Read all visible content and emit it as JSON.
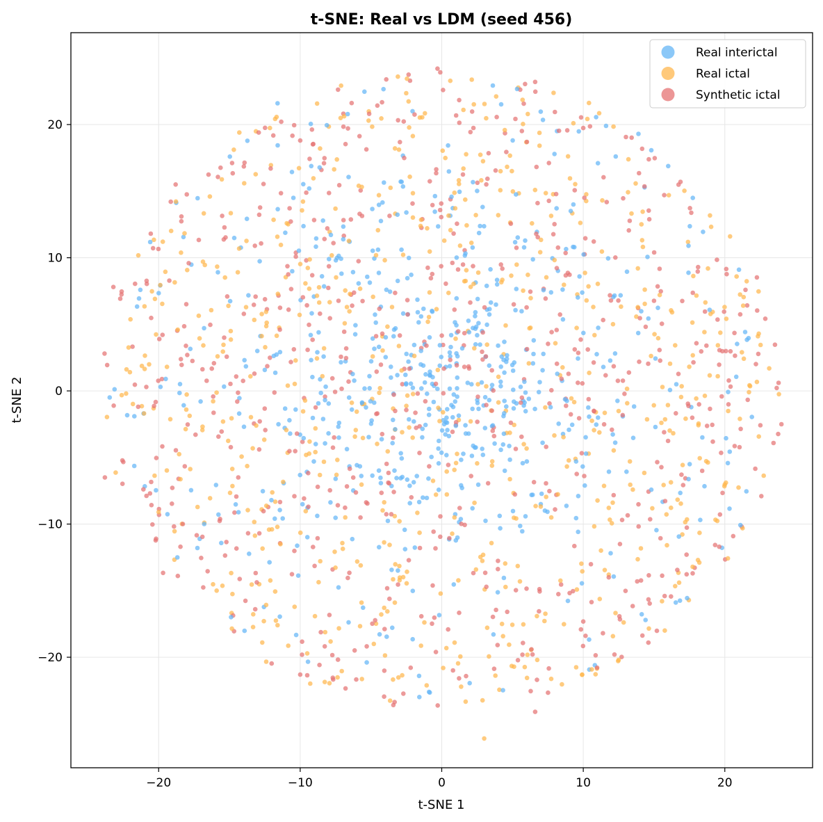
{
  "chart_data": {
    "type": "scatter",
    "title": "t-SNE: Real vs LDM (seed 456)",
    "xlabel": "t-SNE 1",
    "ylabel": "t-SNE 2",
    "xlim": [
      -26.2,
      26.2
    ],
    "ylim": [
      -28.3,
      26.9
    ],
    "xticks": [
      -20,
      -10,
      0,
      10,
      20
    ],
    "yticks": [
      -20,
      -10,
      0,
      10,
      20
    ],
    "xtick_labels": [
      "−20",
      "−10",
      "0",
      "10",
      "20"
    ],
    "ytick_labels": [
      "−20",
      "−10",
      "0",
      "10",
      "20"
    ],
    "grid": true,
    "legend_position": "top-right",
    "point_distribution": "roughly circular cloud centred at (0, 0), radius about 24; real interictal points concentrated near the centre, real ictal and synthetic ictal spread across the whole cloud",
    "series": [
      {
        "name": "Real interictal",
        "color": "#64b5f6",
        "sample_points": [
          [
            0.6,
            2.6
          ],
          [
            -1.3,
            1.9
          ],
          [
            2.1,
            0.5
          ],
          [
            -3.4,
            4.1
          ],
          [
            1.7,
            -3.2
          ],
          [
            4.6,
            2.4
          ],
          [
            -0.9,
            -1.8
          ],
          [
            3.2,
            6.1
          ],
          [
            -5.1,
            0.2
          ],
          [
            5.8,
            -1.1
          ],
          [
            -11.6,
            21.6
          ],
          [
            13.9,
            19.3
          ],
          [
            -0.9,
            -22.6
          ],
          [
            21.0,
            9.1
          ],
          [
            -19.5,
            0.9
          ],
          [
            14.4,
            -17.2
          ],
          [
            -1.6,
            -21.4
          ],
          [
            7.0,
            -8.5
          ],
          [
            -7.5,
            -6.6
          ],
          [
            9.3,
            14.0
          ]
        ]
      },
      {
        "name": "Real ictal",
        "color": "#ffb74d",
        "sample_points": [
          [
            -3.1,
            23.6
          ],
          [
            3.0,
            -26.1
          ],
          [
            -14.3,
            19.4
          ],
          [
            19.5,
            1.1
          ],
          [
            -22.3,
            -0.2
          ],
          [
            21.3,
            6.4
          ],
          [
            -8.6,
            18.2
          ],
          [
            12.5,
            -20.2
          ],
          [
            -15.9,
            -15.0
          ],
          [
            18.1,
            -12.7
          ],
          [
            2.3,
            3.2
          ],
          [
            -2.8,
            -3.1
          ],
          [
            6.2,
            4.7
          ],
          [
            -6.7,
            6.3
          ],
          [
            0.9,
            -9.5
          ],
          [
            22.4,
            4.3
          ],
          [
            -20.0,
            -9.1
          ],
          [
            9.3,
            20.1
          ],
          [
            -4.8,
            -19.0
          ],
          [
            15.4,
            7.2
          ]
        ]
      },
      {
        "name": "Synthetic ictal",
        "color": "#e57373",
        "sample_points": [
          [
            -0.3,
            24.2
          ],
          [
            6.6,
            23.2
          ],
          [
            -23.8,
            -6.5
          ],
          [
            24.0,
            -2.5
          ],
          [
            -23.2,
            7.8
          ],
          [
            6.6,
            -24.1
          ],
          [
            -10.0,
            -21.3
          ],
          [
            21.2,
            -10.2
          ],
          [
            -18.8,
            15.5
          ],
          [
            -10.0,
            18.8
          ],
          [
            1.6,
            1.8
          ],
          [
            -1.7,
            -0.2
          ],
          [
            3.6,
            -3.0
          ],
          [
            -4.2,
            4.3
          ],
          [
            0.9,
            6.1
          ],
          [
            -7.6,
            -3.5
          ],
          [
            8.1,
            -7.8
          ],
          [
            -13.2,
            10.9
          ],
          [
            11.8,
            -14.0
          ],
          [
            18.7,
            3.4
          ]
        ]
      }
    ]
  }
}
